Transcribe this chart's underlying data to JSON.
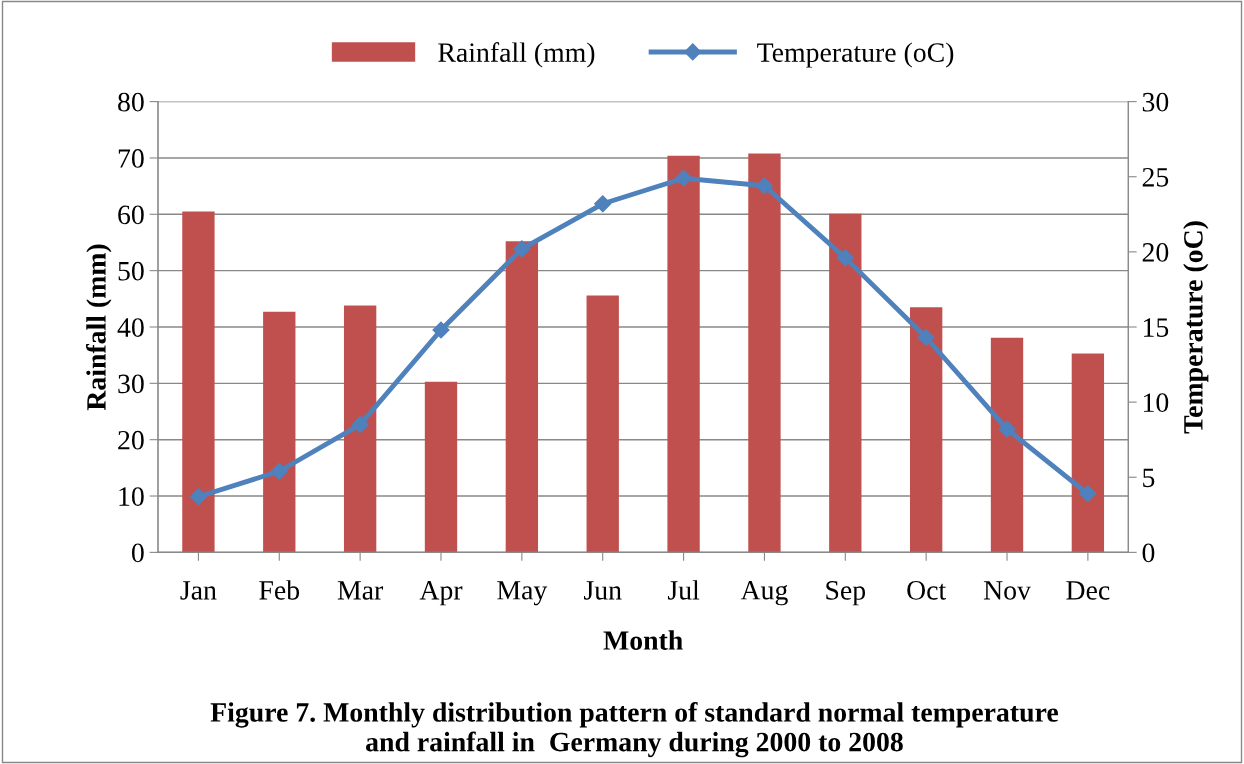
{
  "chart_data": {
    "type": "bar",
    "title": "Figure 7. Monthly distribution pattern of standard normal temperature\nand rainfall in  Germany during 2000 to 2008",
    "xlabel": "Month",
    "ylabel": "Rainfall (mm)",
    "y2label": "Temperature (oC)",
    "categories": [
      "Jan",
      "Feb",
      "Mar",
      "Apr",
      "May",
      "Jun",
      "Jul",
      "Aug",
      "Sep",
      "Oct",
      "Nov",
      "Dec"
    ],
    "series": [
      {
        "name": "Rainfall (mm)",
        "color": "#c0504d",
        "values": [
          60.5,
          42.7,
          43.8,
          30.3,
          55.2,
          45.6,
          70.4,
          70.8,
          60.1,
          43.5,
          38.1,
          35.3
        ]
      },
      {
        "name": "Temperature (oC)",
        "type": "line",
        "axis": "y2",
        "color": "#4f81bd",
        "marker": "diamond",
        "values": [
          3.7,
          5.4,
          8.5,
          14.8,
          20.2,
          23.2,
          24.9,
          24.4,
          19.6,
          14.3,
          8.2,
          3.9
        ]
      }
    ],
    "ylim": [
      0,
      80
    ],
    "yticks": [
      0,
      10,
      20,
      30,
      40,
      50,
      60,
      70,
      80
    ],
    "y2lim": [
      0,
      30
    ],
    "y2ticks": [
      0,
      5,
      10,
      15,
      20,
      25,
      30
    ],
    "grid": "y",
    "legend": "top"
  }
}
